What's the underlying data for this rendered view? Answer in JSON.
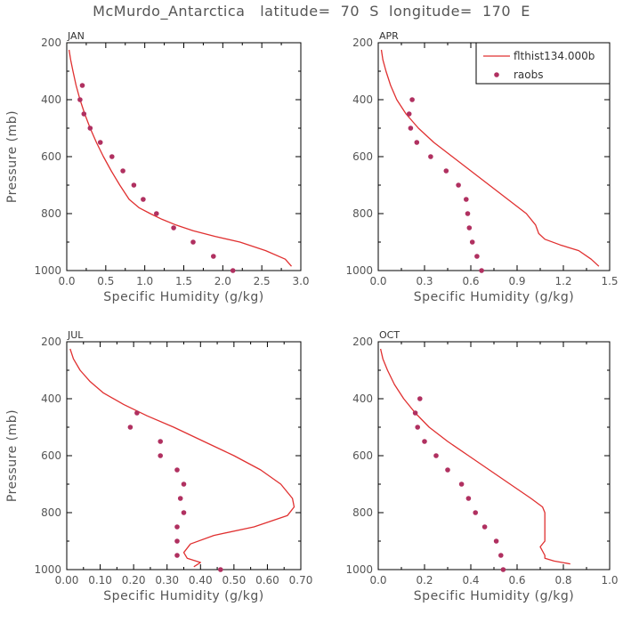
{
  "title": "McMurdo_Antarctica   latitude=  70  S  longitude=  170  E",
  "colors": {
    "model": "#e03030",
    "obs": "#b03060",
    "axis": "#000000",
    "text": "#555555"
  },
  "legend": {
    "model_label": "flthist134.000b",
    "obs_label": "raobs",
    "placement": "top-right of APR panel"
  },
  "chart_data": [
    {
      "type": "line",
      "panel": "JAN",
      "xlabel": "Specific Humidity (g/kg)",
      "ylabel": "Pressure (mb)",
      "xlim": [
        0.0,
        3.0
      ],
      "ylim": [
        1000,
        200
      ],
      "xticks": [
        "0.0",
        "0.5",
        "1.0",
        "1.5",
        "2.0",
        "2.5",
        "3.0"
      ],
      "xtick_values": [
        0.0,
        0.5,
        1.0,
        1.5,
        2.0,
        2.5,
        3.0
      ],
      "yticks": [
        "200",
        "400",
        "600",
        "800",
        "1000"
      ],
      "ytick_values": [
        200,
        400,
        600,
        800,
        1000
      ],
      "series": [
        {
          "name": "flthist134.000b",
          "kind": "line",
          "x": [
            0.03,
            0.05,
            0.08,
            0.12,
            0.17,
            0.23,
            0.3,
            0.38,
            0.47,
            0.57,
            0.68,
            0.8,
            0.93,
            1.07,
            1.22,
            1.4,
            1.62,
            1.9,
            2.22,
            2.55,
            2.8,
            2.88
          ],
          "y": [
            225,
            260,
            300,
            350,
            400,
            450,
            500,
            550,
            600,
            650,
            700,
            750,
            780,
            800,
            820,
            840,
            860,
            880,
            900,
            930,
            960,
            985
          ]
        },
        {
          "name": "raobs",
          "kind": "scatter",
          "x": [
            0.2,
            0.17,
            0.22,
            0.3,
            0.43,
            0.58,
            0.72,
            0.86,
            0.98,
            1.15,
            1.37,
            1.62,
            1.88,
            2.13
          ],
          "y": [
            350,
            400,
            450,
            500,
            550,
            600,
            650,
            700,
            750,
            800,
            850,
            900,
            950,
            1000
          ]
        }
      ]
    },
    {
      "type": "line",
      "panel": "APR",
      "xlabel": "Specific Humidity (g/kg)",
      "ylabel": "",
      "xlim": [
        0.0,
        1.5
      ],
      "ylim": [
        1000,
        200
      ],
      "xticks": [
        "0.0",
        "0.3",
        "0.6",
        "0.9",
        "1.2",
        "1.5"
      ],
      "xtick_values": [
        0.0,
        0.3,
        0.6,
        0.9,
        1.2,
        1.5
      ],
      "yticks": [
        "200",
        "400",
        "600",
        "800",
        "1000"
      ],
      "ytick_values": [
        200,
        400,
        600,
        800,
        1000
      ],
      "series": [
        {
          "name": "flthist134.000b",
          "kind": "line",
          "x": [
            0.02,
            0.03,
            0.05,
            0.08,
            0.12,
            0.18,
            0.26,
            0.36,
            0.48,
            0.6,
            0.72,
            0.84,
            0.96,
            1.02,
            1.04,
            1.08,
            1.18,
            1.3,
            1.38,
            1.43
          ],
          "y": [
            225,
            260,
            300,
            350,
            400,
            450,
            500,
            550,
            600,
            650,
            700,
            750,
            800,
            840,
            870,
            890,
            910,
            930,
            960,
            985
          ]
        },
        {
          "name": "raobs",
          "kind": "scatter",
          "x": [
            0.22,
            0.2,
            0.21,
            0.25,
            0.34,
            0.44,
            0.52,
            0.57,
            0.58,
            0.59,
            0.61,
            0.64,
            0.67
          ],
          "y": [
            400,
            450,
            500,
            550,
            600,
            650,
            700,
            750,
            800,
            850,
            900,
            950,
            1000
          ]
        }
      ]
    },
    {
      "type": "line",
      "panel": "JUL",
      "xlabel": "Specific Humidity (g/kg)",
      "ylabel": "Pressure (mb)",
      "xlim": [
        0.0,
        0.7
      ],
      "ylim": [
        1000,
        200
      ],
      "xticks": [
        "0.00",
        "0.10",
        "0.20",
        "0.30",
        "0.40",
        "0.50",
        "0.60",
        "0.70"
      ],
      "xtick_values": [
        0.0,
        0.1,
        0.2,
        0.3,
        0.4,
        0.5,
        0.6,
        0.7
      ],
      "yticks": [
        "200",
        "400",
        "600",
        "800",
        "1000"
      ],
      "ytick_values": [
        200,
        400,
        600,
        800,
        1000
      ],
      "series": [
        {
          "name": "flthist134.000b",
          "kind": "line",
          "x": [
            0.01,
            0.02,
            0.04,
            0.07,
            0.11,
            0.17,
            0.24,
            0.32,
            0.41,
            0.5,
            0.58,
            0.64,
            0.675,
            0.68,
            0.66,
            0.56,
            0.44,
            0.37,
            0.35,
            0.36,
            0.4,
            0.38
          ],
          "y": [
            225,
            260,
            300,
            340,
            380,
            420,
            460,
            500,
            550,
            600,
            650,
            700,
            750,
            780,
            810,
            850,
            880,
            910,
            940,
            960,
            975,
            990
          ]
        },
        {
          "name": "raobs",
          "kind": "scatter",
          "x": [
            0.21,
            0.19,
            0.28,
            0.28,
            0.33,
            0.35,
            0.34,
            0.35,
            0.33,
            0.33,
            0.33,
            0.46
          ],
          "y": [
            450,
            500,
            550,
            600,
            650,
            700,
            750,
            800,
            850,
            900,
            950,
            1000
          ]
        }
      ]
    },
    {
      "type": "line",
      "panel": "OCT",
      "xlabel": "Specific Humidity (g/kg)",
      "ylabel": "",
      "xlim": [
        0.0,
        1.0
      ],
      "ylim": [
        1000,
        200
      ],
      "xticks": [
        "0.0",
        "0.2",
        "0.4",
        "0.6",
        "0.8",
        "1.0"
      ],
      "xtick_values": [
        0.0,
        0.2,
        0.4,
        0.6,
        0.8,
        1.0
      ],
      "yticks": [
        "200",
        "400",
        "600",
        "800",
        "1000"
      ],
      "ytick_values": [
        200,
        400,
        600,
        800,
        1000
      ],
      "series": [
        {
          "name": "flthist134.000b",
          "kind": "line",
          "x": [
            0.01,
            0.02,
            0.04,
            0.07,
            0.11,
            0.16,
            0.22,
            0.3,
            0.39,
            0.48,
            0.57,
            0.66,
            0.71,
            0.72,
            0.72,
            0.7,
            0.72,
            0.72,
            0.76,
            0.83
          ],
          "y": [
            225,
            260,
            300,
            350,
            400,
            450,
            500,
            550,
            600,
            650,
            700,
            750,
            780,
            800,
            900,
            920,
            950,
            960,
            970,
            980
          ]
        },
        {
          "name": "raobs",
          "kind": "scatter",
          "x": [
            0.18,
            0.16,
            0.17,
            0.2,
            0.25,
            0.3,
            0.36,
            0.39,
            0.42,
            0.46,
            0.51,
            0.53,
            0.54
          ],
          "y": [
            400,
            450,
            500,
            550,
            600,
            650,
            700,
            750,
            800,
            850,
            900,
            950,
            1000
          ]
        }
      ]
    }
  ]
}
